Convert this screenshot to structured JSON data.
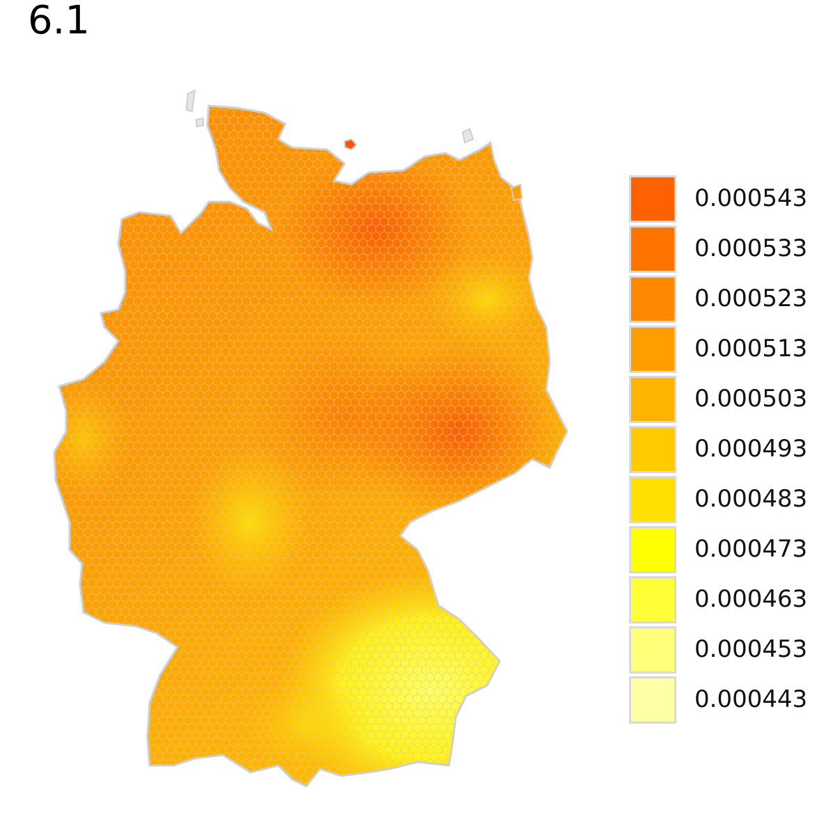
{
  "title": "6.1",
  "legend": {
    "items": [
      {
        "label": "0.000543",
        "color": "#ff6000"
      },
      {
        "label": "0.000533",
        "color": "#ff7400"
      },
      {
        "label": "0.000523",
        "color": "#ff8800"
      },
      {
        "label": "0.000513",
        "color": "#ff9e00"
      },
      {
        "label": "0.000503",
        "color": "#ffb400"
      },
      {
        "label": "0.000493",
        "color": "#ffca00"
      },
      {
        "label": "0.000483",
        "color": "#ffe000"
      },
      {
        "label": "0.000473",
        "color": "#ffff00"
      },
      {
        "label": "0.000463",
        "color": "#ffff38"
      },
      {
        "label": "0.000453",
        "color": "#ffff7a"
      },
      {
        "label": "0.000443",
        "color": "#ffffa6"
      }
    ]
  },
  "map": {
    "region": "Germany",
    "grid": "hexagonal",
    "cell_border_color": "#d0d0d0"
  }
}
